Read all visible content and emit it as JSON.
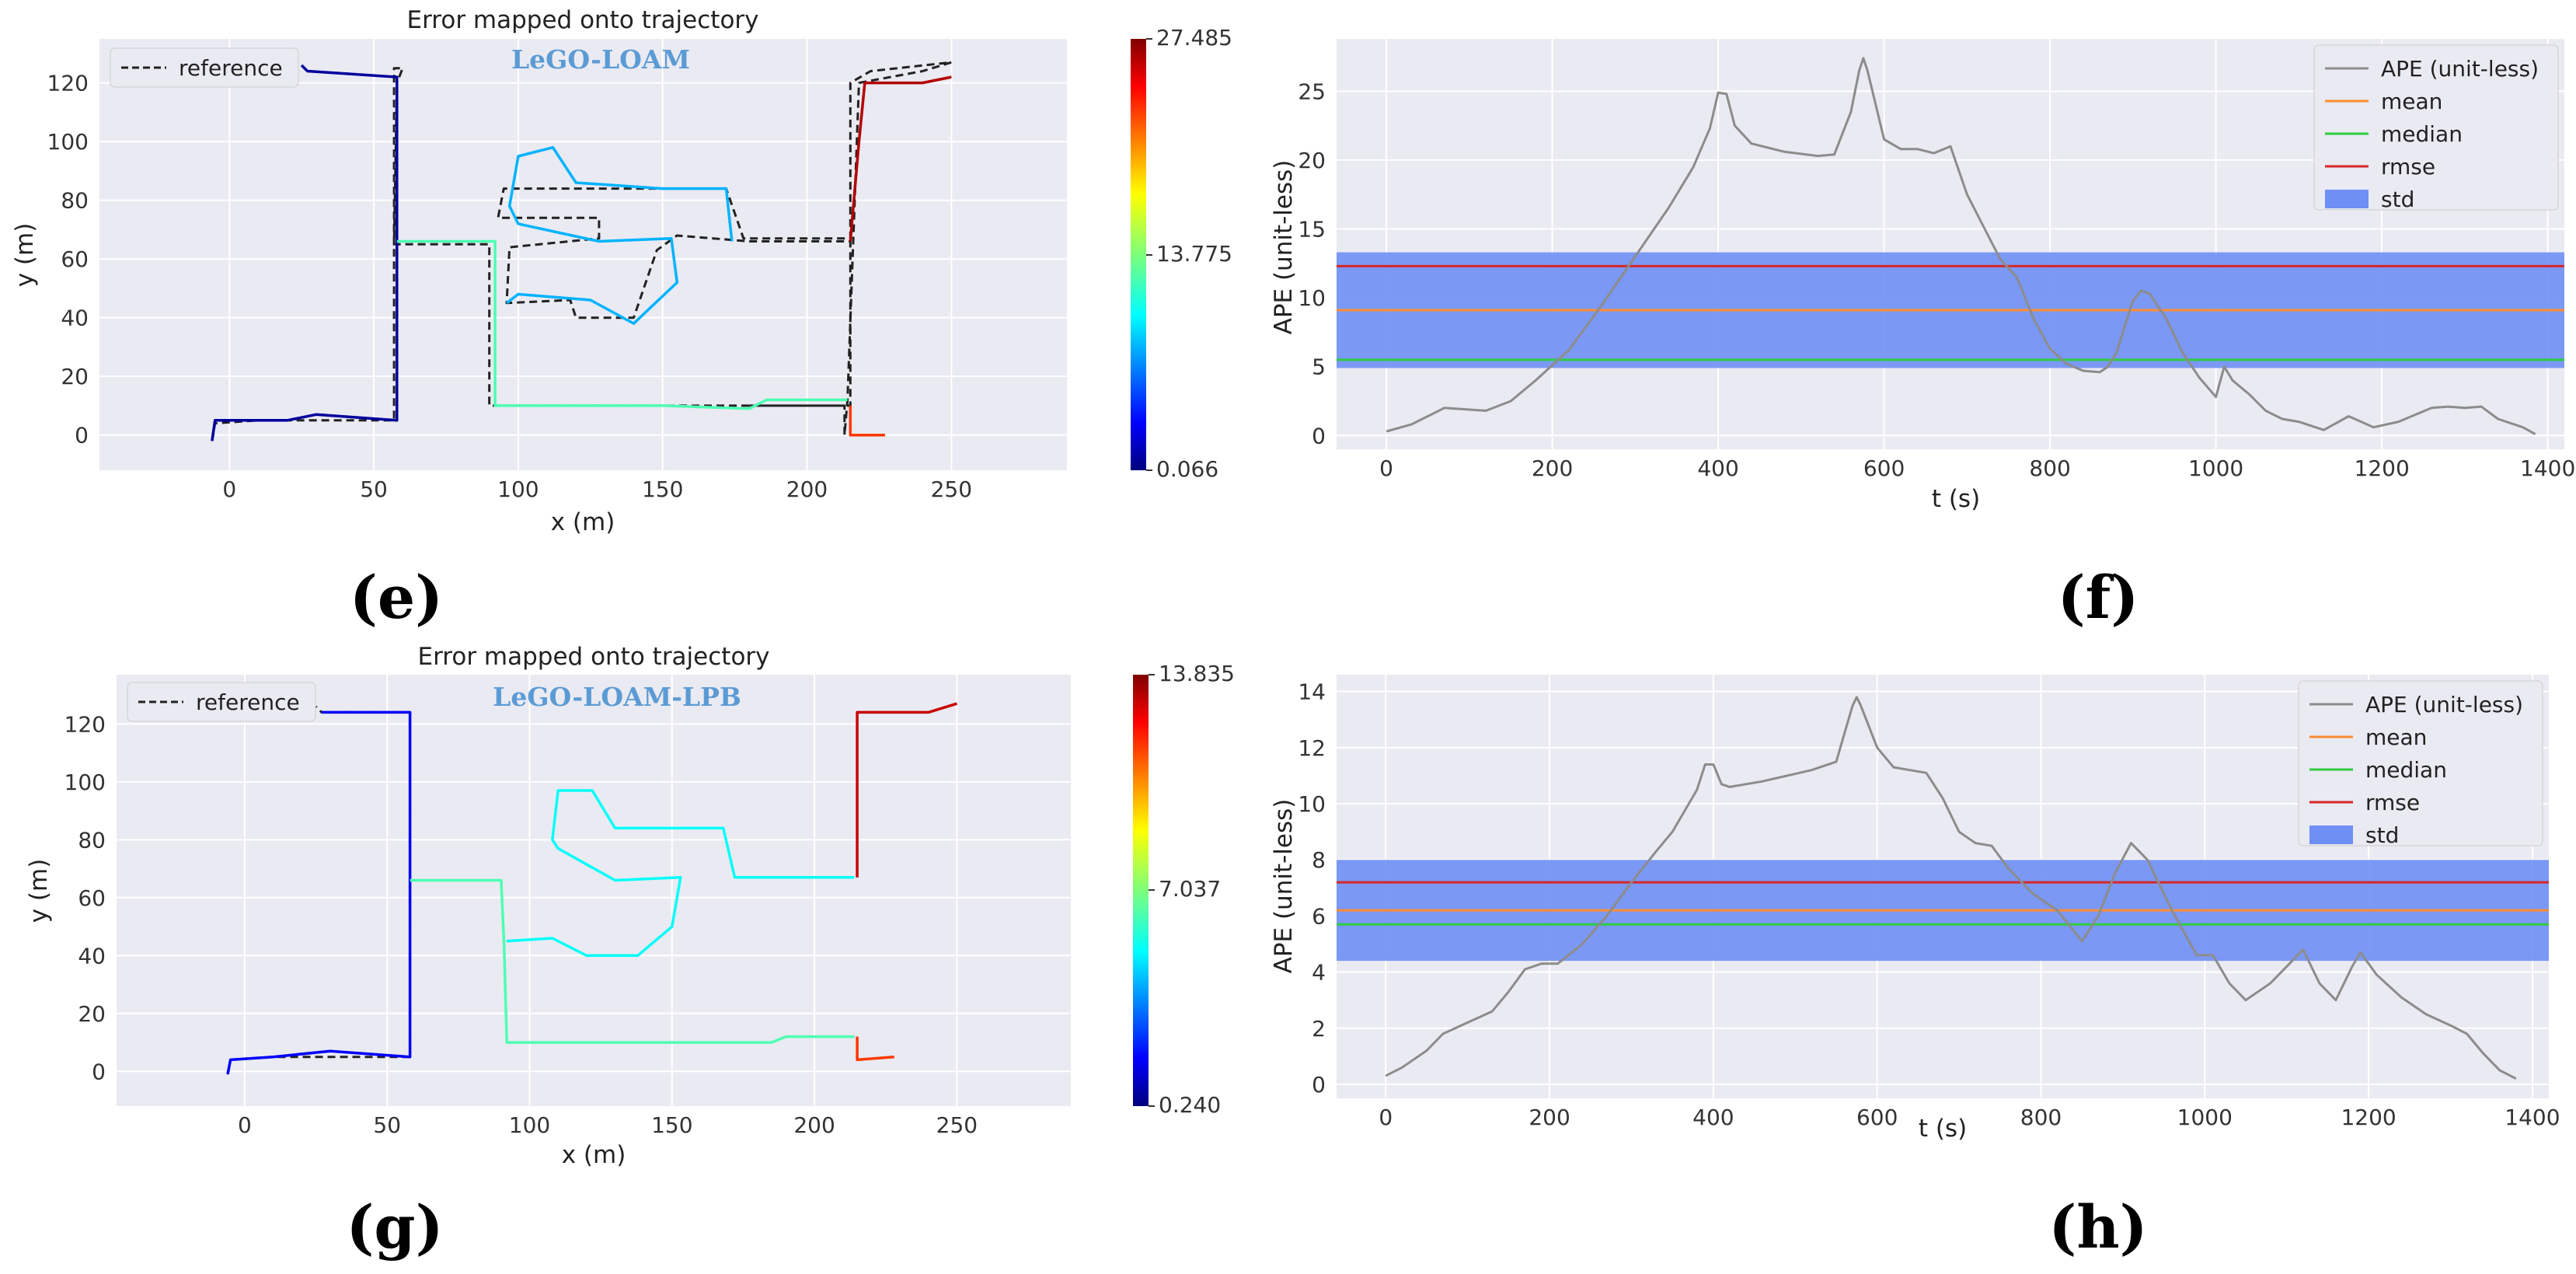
{
  "colors": {
    "plot_bg": "#eaeaf2",
    "grid": "#ffffff",
    "ape_line": "#8c8c8c",
    "mean": "#ff8c33",
    "median": "#2ecc40",
    "rmse": "#d62728",
    "std_band": "#6f8ff5",
    "reference": "#222222"
  },
  "chart_data": [
    {
      "id": "e",
      "type": "line",
      "panel_label": "(e)",
      "title": "Error mapped onto trajectory",
      "watermark": "LeGO-LOAM",
      "xlabel": "x (m)",
      "ylabel": "y (m)",
      "xlim": [
        -45,
        290
      ],
      "ylim": [
        -12,
        135
      ],
      "xticks": [
        0,
        50,
        100,
        150,
        200,
        250
      ],
      "yticks": [
        0,
        20,
        40,
        60,
        80,
        100,
        120
      ],
      "legend": {
        "label": "reference",
        "placement": "top-left"
      },
      "colorbar": {
        "min": 0.066,
        "max": 27.485,
        "labels": [
          "27.485",
          "13.775",
          "0.066"
        ]
      },
      "reference_path": [
        [
          -6,
          -2
        ],
        [
          -5,
          4
        ],
        [
          10,
          5
        ],
        [
          30,
          5
        ],
        [
          55,
          5
        ],
        [
          57,
          5
        ],
        [
          57,
          125
        ],
        [
          60,
          125
        ],
        [
          58,
          120
        ],
        [
          57,
          65
        ],
        [
          90,
          65
        ],
        [
          90,
          10
        ],
        [
          213,
          10
        ],
        [
          213,
          0
        ],
        [
          214,
          12
        ],
        [
          218,
          120
        ],
        [
          240,
          124
        ],
        [
          250,
          127
        ],
        [
          222,
          124
        ],
        [
          215,
          120
        ],
        [
          215,
          67
        ],
        [
          178,
          67
        ],
        [
          172,
          84
        ],
        [
          95,
          84
        ],
        [
          93,
          74
        ],
        [
          128,
          74
        ],
        [
          128,
          67
        ],
        [
          97,
          64
        ],
        [
          96,
          45
        ],
        [
          118,
          46
        ],
        [
          120,
          40
        ],
        [
          140,
          40
        ],
        [
          148,
          63
        ],
        [
          155,
          68
        ],
        [
          180,
          66
        ],
        [
          215,
          66
        ],
        [
          215,
          10
        ],
        [
          180,
          10
        ]
      ],
      "error_path": [
        [
          [
            -6,
            -2
          ],
          [
            -5,
            5
          ],
          [
            20,
            5
          ],
          [
            30,
            7
          ],
          [
            58,
            5
          ],
          [
            58,
            30
          ],
          [
            58,
            60
          ],
          [
            58,
            122
          ],
          [
            27,
            124
          ],
          [
            25,
            126
          ]
        ],
        [
          [
            58,
            66
          ],
          [
            92,
            66
          ],
          [
            92,
            40
          ],
          [
            92,
            10
          ],
          [
            150,
            10
          ],
          [
            180,
            9
          ],
          [
            186,
            12
          ],
          [
            214,
            12
          ]
        ],
        [
          [
            96,
            45
          ],
          [
            100,
            48
          ],
          [
            125,
            46
          ],
          [
            140,
            38
          ],
          [
            155,
            52
          ],
          [
            153,
            67
          ],
          [
            128,
            66
          ],
          [
            100,
            72
          ],
          [
            97,
            78
          ],
          [
            100,
            95
          ],
          [
            112,
            98
          ],
          [
            120,
            86
          ],
          [
            150,
            84
          ],
          [
            172,
            84
          ],
          [
            174,
            66
          ]
        ],
        [
          [
            215,
            10
          ],
          [
            215,
            0
          ],
          [
            227,
            0
          ]
        ],
        [
          [
            215,
            66
          ],
          [
            218,
            100
          ],
          [
            220,
            120
          ],
          [
            240,
            120
          ],
          [
            250,
            122
          ]
        ]
      ],
      "error_colors": [
        0.03,
        0.45,
        0.3,
        0.82,
        0.95
      ]
    },
    {
      "id": "f",
      "type": "line",
      "panel_label": "(f)",
      "xlabel": "t (s)",
      "ylabel": "APE (unit-less)",
      "xlim": [
        -60,
        1420
      ],
      "ylim": [
        -1,
        28.8
      ],
      "xticks": [
        0,
        200,
        400,
        600,
        800,
        1000,
        1200,
        1400
      ],
      "yticks": [
        0,
        5,
        10,
        15,
        20,
        25
      ],
      "legend": [
        "APE (unit-less)",
        "mean",
        "median",
        "rmse",
        "std"
      ],
      "stats": {
        "mean": 9.1,
        "median": 5.5,
        "rmse": 12.3,
        "std_low": 4.9,
        "std_high": 13.3
      },
      "series": [
        {
          "name": "APE (unit-less)",
          "x": [
            0,
            30,
            70,
            120,
            150,
            180,
            220,
            260,
            300,
            340,
            370,
            390,
            400,
            410,
            420,
            440,
            480,
            520,
            540,
            560,
            570,
            575,
            580,
            600,
            620,
            640,
            660,
            680,
            700,
            740,
            760,
            780,
            800,
            820,
            840,
            860,
            870,
            880,
            900,
            910,
            920,
            940,
            960,
            980,
            1000,
            1010,
            1020,
            1040,
            1060,
            1080,
            1100,
            1130,
            1160,
            1190,
            1220,
            1260,
            1280,
            1300,
            1320,
            1340,
            1370,
            1385
          ],
          "y": [
            0.3,
            0.8,
            2.0,
            1.8,
            2.5,
            4.0,
            6.2,
            9.5,
            13,
            16.5,
            19.5,
            22.3,
            24.9,
            24.8,
            22.5,
            21.2,
            20.6,
            20.3,
            20.4,
            23.5,
            26.5,
            27.4,
            26.5,
            21.5,
            20.8,
            20.8,
            20.5,
            21,
            17.5,
            12.8,
            11.5,
            8.5,
            6.3,
            5.2,
            4.7,
            4.6,
            5.0,
            6.0,
            9.8,
            10.5,
            10.3,
            8.5,
            6.0,
            4.2,
            2.8,
            5.0,
            4.0,
            3.0,
            1.8,
            1.2,
            1.0,
            0.4,
            1.4,
            0.6,
            1.0,
            2.0,
            2.1,
            2.0,
            2.1,
            1.2,
            0.6,
            0.1
          ]
        }
      ]
    },
    {
      "id": "g",
      "type": "line",
      "panel_label": "(g)",
      "title": "Error mapped onto trajectory",
      "watermark": "LeGO-LOAM-LPB",
      "xlabel": "x (m)",
      "ylabel": "y (m)",
      "xlim": [
        -45,
        290
      ],
      "ylim": [
        -12,
        137
      ],
      "xticks": [
        0,
        50,
        100,
        150,
        200,
        250
      ],
      "yticks": [
        0,
        20,
        40,
        60,
        80,
        100,
        120
      ],
      "legend": {
        "label": "reference",
        "placement": "top-left"
      },
      "colorbar": {
        "min": 0.24,
        "max": 13.835,
        "labels": [
          "13.835",
          "7.037",
          "0.240"
        ]
      },
      "reference_path": [
        [
          -6,
          -1
        ],
        [
          -5,
          4
        ],
        [
          10,
          5
        ],
        [
          30,
          5
        ],
        [
          58,
          5
        ],
        [
          58,
          124
        ],
        [
          27,
          124
        ],
        [
          25,
          126
        ]
      ],
      "error_path": [
        [
          [
            -6,
            -1
          ],
          [
            -5,
            4
          ],
          [
            10,
            5
          ],
          [
            30,
            7
          ],
          [
            58,
            5
          ],
          [
            58,
            124
          ],
          [
            27,
            124
          ]
        ],
        [
          [
            58,
            66
          ],
          [
            90,
            66
          ],
          [
            91,
            45
          ],
          [
            92,
            10
          ],
          [
            150,
            10
          ],
          [
            185,
            10
          ],
          [
            190,
            12
          ],
          [
            214,
            12
          ]
        ],
        [
          [
            92,
            45
          ],
          [
            108,
            46
          ],
          [
            120,
            40
          ],
          [
            138,
            40
          ],
          [
            150,
            50
          ],
          [
            153,
            67
          ],
          [
            130,
            66
          ],
          [
            110,
            77
          ],
          [
            108,
            80
          ],
          [
            110,
            97
          ],
          [
            122,
            97
          ],
          [
            130,
            84
          ],
          [
            168,
            84
          ],
          [
            172,
            67
          ],
          [
            214,
            67
          ]
        ],
        [
          [
            215,
            12
          ],
          [
            215,
            4
          ],
          [
            228,
            5
          ]
        ],
        [
          [
            215,
            67
          ],
          [
            215,
            124
          ],
          [
            240,
            124
          ],
          [
            250,
            127
          ]
        ]
      ],
      "error_colors": [
        0.12,
        0.45,
        0.38,
        0.82,
        0.93
      ]
    },
    {
      "id": "h",
      "type": "line",
      "panel_label": "(h)",
      "xlabel": "t (s)",
      "ylabel": "APE (unit-less)",
      "xlim": [
        -60,
        1420
      ],
      "ylim": [
        -0.5,
        14.6
      ],
      "xticks": [
        0,
        200,
        400,
        600,
        800,
        1000,
        1200,
        1400
      ],
      "yticks": [
        0,
        2,
        4,
        6,
        8,
        10,
        12,
        14
      ],
      "legend": [
        "APE (unit-less)",
        "mean",
        "median",
        "rmse",
        "std"
      ],
      "stats": {
        "mean": 6.2,
        "median": 5.7,
        "rmse": 7.2,
        "std_low": 4.4,
        "std_high": 8.0
      },
      "series": [
        {
          "name": "APE (unit-less)",
          "x": [
            0,
            20,
            50,
            70,
            100,
            130,
            150,
            170,
            190,
            210,
            240,
            270,
            300,
            330,
            350,
            380,
            390,
            400,
            410,
            420,
            440,
            460,
            490,
            520,
            550,
            560,
            570,
            575,
            580,
            600,
            620,
            640,
            660,
            680,
            700,
            720,
            740,
            760,
            790,
            820,
            850,
            870,
            890,
            910,
            920,
            930,
            960,
            990,
            1010,
            1030,
            1050,
            1080,
            1100,
            1120,
            1140,
            1160,
            1180,
            1190,
            1210,
            1240,
            1270,
            1300,
            1320,
            1340,
            1360,
            1380
          ],
          "y": [
            0.3,
            0.6,
            1.2,
            1.8,
            2.2,
            2.6,
            3.3,
            4.1,
            4.3,
            4.3,
            5.0,
            6.0,
            7.2,
            8.3,
            9.0,
            10.5,
            11.4,
            11.4,
            10.7,
            10.6,
            10.7,
            10.8,
            11.0,
            11.2,
            11.5,
            12.5,
            13.5,
            13.8,
            13.5,
            12.0,
            11.3,
            11.2,
            11.1,
            10.2,
            9.0,
            8.6,
            8.5,
            7.7,
            6.8,
            6.2,
            5.1,
            6.0,
            7.5,
            8.6,
            8.3,
            8.0,
            6.2,
            4.6,
            4.6,
            3.6,
            3.0,
            3.6,
            4.2,
            4.8,
            3.6,
            3.0,
            4.2,
            4.7,
            3.9,
            3.1,
            2.5,
            2.1,
            1.8,
            1.1,
            0.5,
            0.2
          ]
        }
      ]
    }
  ]
}
